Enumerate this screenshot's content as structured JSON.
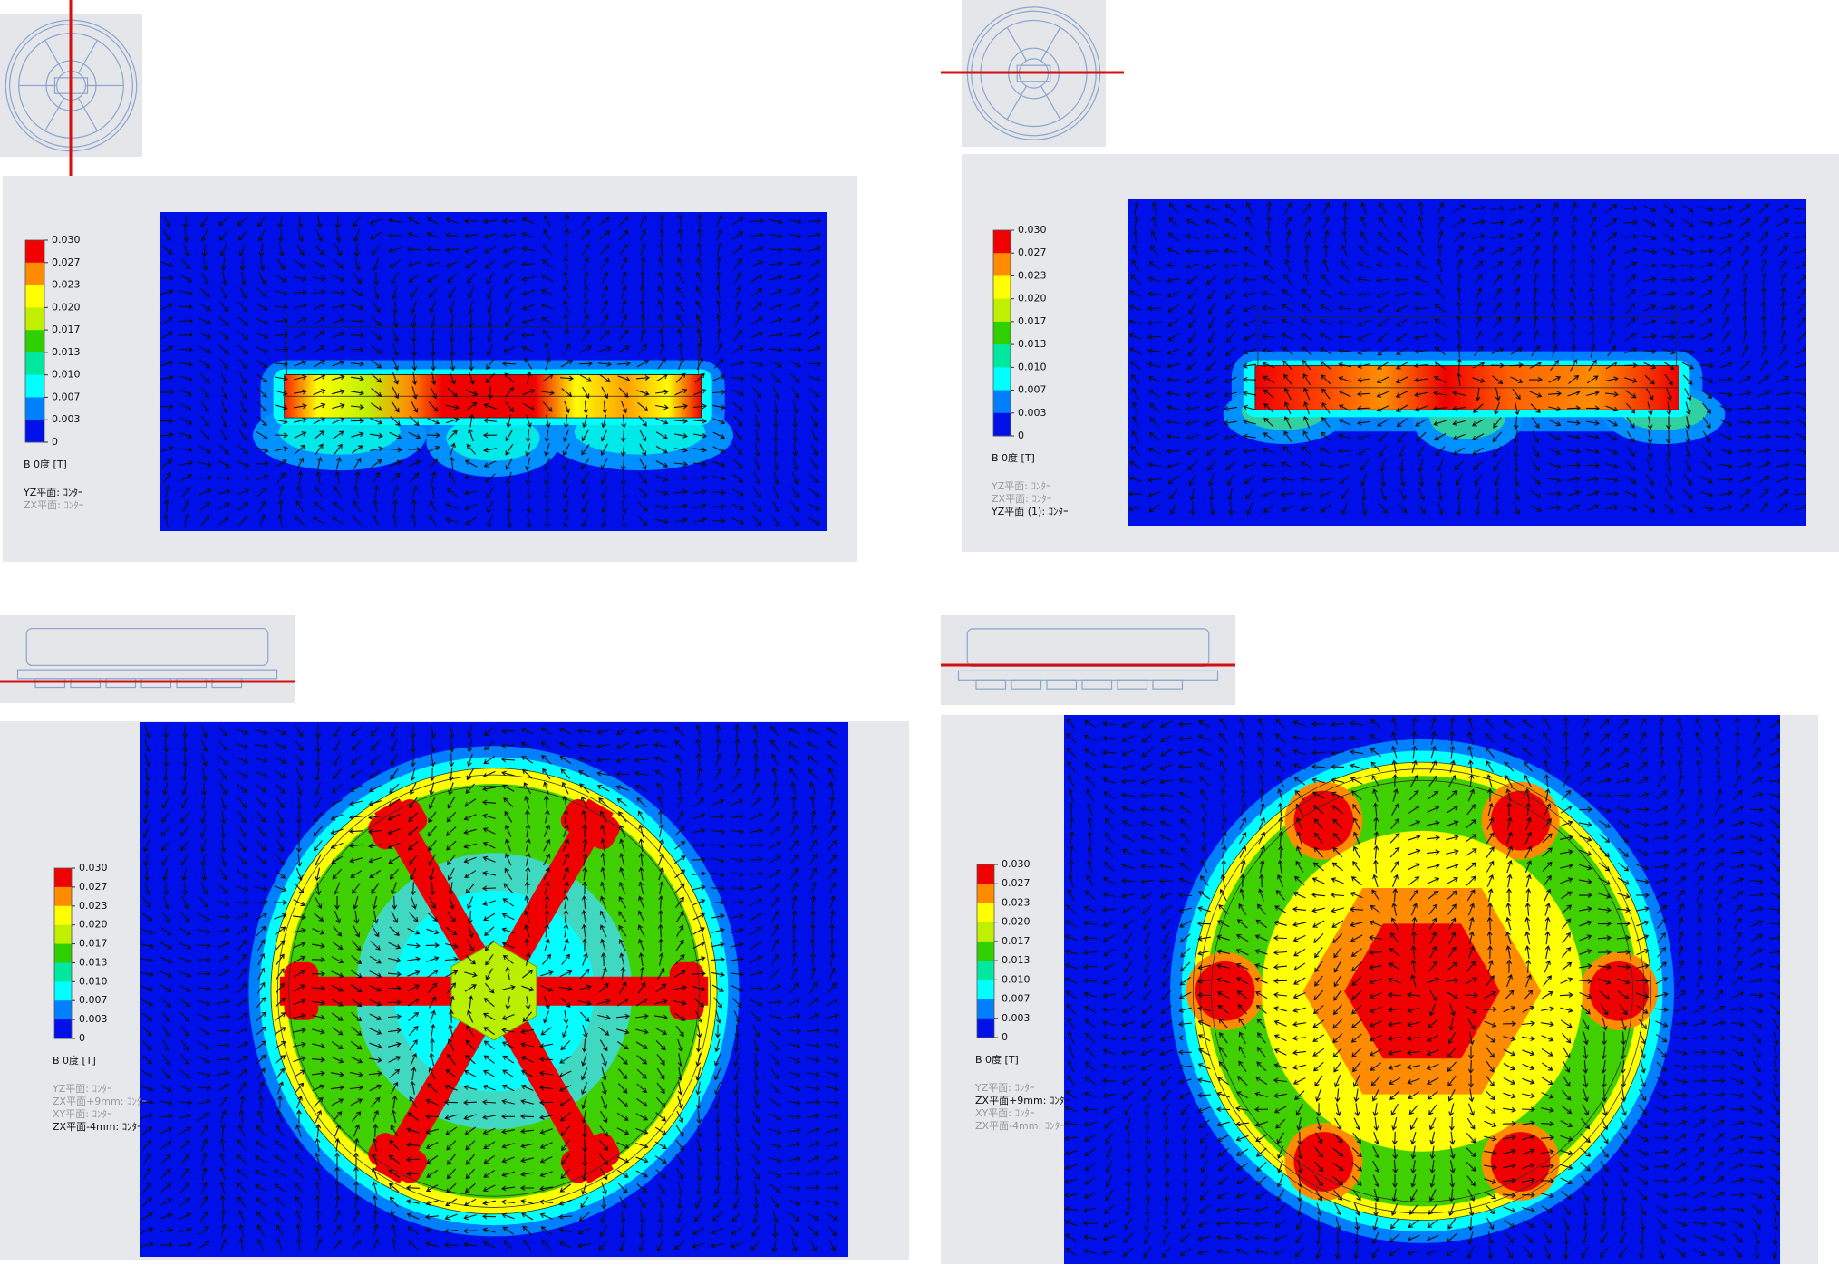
{
  "legend": {
    "ticks": [
      "0.030",
      "0.027",
      "0.023",
      "0.020",
      "0.017",
      "0.013",
      "0.010",
      "0.007",
      "0.003",
      "0"
    ],
    "unit": "B 0度 [T]"
  },
  "panels": [
    {
      "planes": [
        {
          "text": "YZ平面: ｺﾝﾀｰ",
          "active": true
        },
        {
          "text": "ZX平面: ｺﾝﾀｰ",
          "active": false
        }
      ]
    },
    {
      "planes": [
        {
          "text": "YZ平面: ｺﾝﾀｰ",
          "active": false
        },
        {
          "text": "ZX平面: ｺﾝﾀｰ",
          "active": false
        },
        {
          "text": "YZ平面 (1): ｺﾝﾀｰ",
          "active": true
        }
      ]
    },
    {
      "planes": [
        {
          "text": "YZ平面: ｺﾝﾀｰ",
          "active": false
        },
        {
          "text": "ZX平面+9mm: ｺﾝﾀｰ",
          "active": false
        },
        {
          "text": "XY平面: ｺﾝﾀｰ",
          "active": false
        },
        {
          "text": "ZX平面-4mm: ｺﾝﾀｰ",
          "active": true
        }
      ]
    },
    {
      "planes": [
        {
          "text": "YZ平面: ｺﾝﾀｰ",
          "active": false
        },
        {
          "text": "ZX平面+9mm: ｺﾝﾀｰ",
          "active": true
        },
        {
          "text": "XY平面: ｺﾝﾀｰ",
          "active": false
        },
        {
          "text": "ZX平面-4mm: ｺﾝﾀｰ",
          "active": false
        }
      ]
    }
  ]
}
